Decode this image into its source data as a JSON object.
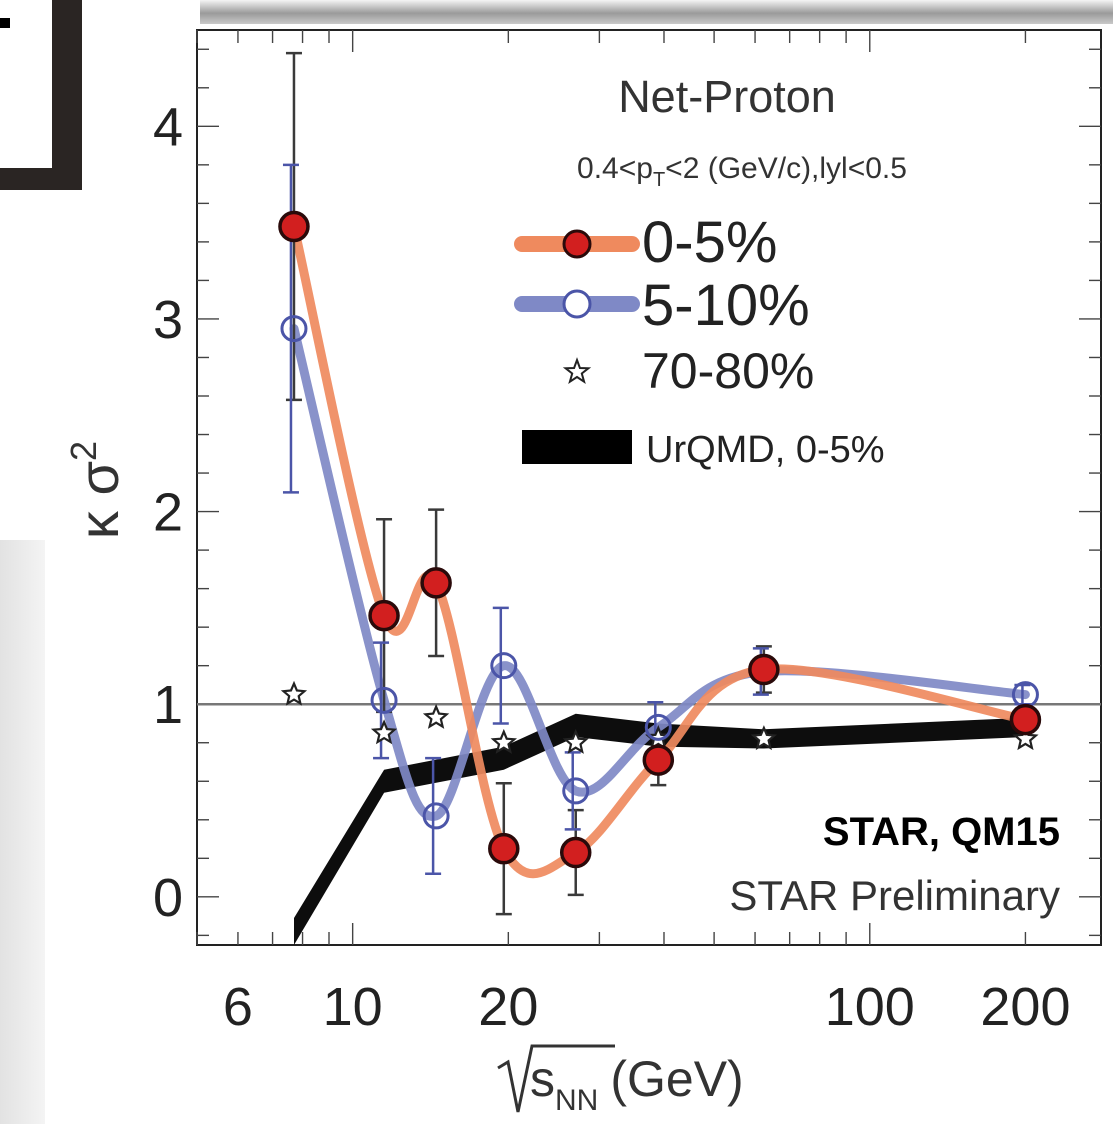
{
  "chart_data": {
    "type": "scatter",
    "title": "Net-Proton",
    "subtitle_main": "0.4<p",
    "subtitle_sub": "T",
    "subtitle_rest": "<2 (GeV/c),lyl<0.5",
    "ylabel": "κ σ",
    "ylabel_sup": "2",
    "xlabel_main": "s",
    "xlabel_sub": "NN",
    "xlabel_unit": "(GeV)",
    "xscale": "log",
    "xlim": [
      5,
      280
    ],
    "ylim": [
      -0.25,
      4.5
    ],
    "xticks": [
      6,
      10,
      20,
      100,
      200
    ],
    "xtick_labels": [
      "6",
      "10",
      "20",
      "100",
      "200"
    ],
    "yticks": [
      0,
      1,
      2,
      3,
      4
    ],
    "ytick_labels": [
      "0",
      "1",
      "2",
      "3",
      "4"
    ],
    "reference_line": 1,
    "series": [
      {
        "name": "0-5%",
        "marker": "filled-circle",
        "color": "#d21f1f",
        "curve_color": "#ef8a5e",
        "x": [
          7.7,
          11.5,
          14.5,
          19.6,
          27,
          39,
          62.4,
          200
        ],
        "y": [
          3.48,
          1.46,
          1.63,
          0.25,
          0.23,
          0.71,
          1.18,
          0.92
        ],
        "err": [
          0.9,
          0.5,
          0.38,
          0.34,
          0.22,
          0.13,
          0.12,
          0.06
        ]
      },
      {
        "name": "5-10%",
        "marker": "open-circle",
        "color": "#4b55a8",
        "curve_color": "#7f89c6",
        "x": [
          7.7,
          11.5,
          14.5,
          19.6,
          27,
          39,
          62.4,
          200
        ],
        "y": [
          2.95,
          1.02,
          0.42,
          1.2,
          0.55,
          0.88,
          1.17,
          1.05
        ],
        "err": [
          0.85,
          0.3,
          0.3,
          0.3,
          0.2,
          0.13,
          0.12,
          0.05
        ]
      },
      {
        "name": "70-80%",
        "marker": "star",
        "color": "#222222",
        "x": [
          7.7,
          11.5,
          14.5,
          19.6,
          27,
          39,
          62.4,
          200
        ],
        "y": [
          1.05,
          0.85,
          0.93,
          0.8,
          0.8,
          0.82,
          0.82,
          0.82
        ],
        "err": [
          0,
          0,
          0,
          0,
          0,
          0,
          0,
          0
        ]
      },
      {
        "name": "UrQMD, 0-5%",
        "type": "band",
        "color": "#000000",
        "x": [
          7.7,
          11.5,
          19.6,
          27,
          39,
          62.4,
          200
        ],
        "y": [
          -0.18,
          0.6,
          0.72,
          0.89,
          0.84,
          0.82,
          0.88
        ],
        "halfwidth": [
          0.07,
          0.06,
          0.06,
          0.06,
          0.06,
          0.05,
          0.05
        ]
      }
    ],
    "annotations": [
      "STAR, QM15",
      "STAR Preliminary"
    ],
    "legend_position": "top-right"
  }
}
